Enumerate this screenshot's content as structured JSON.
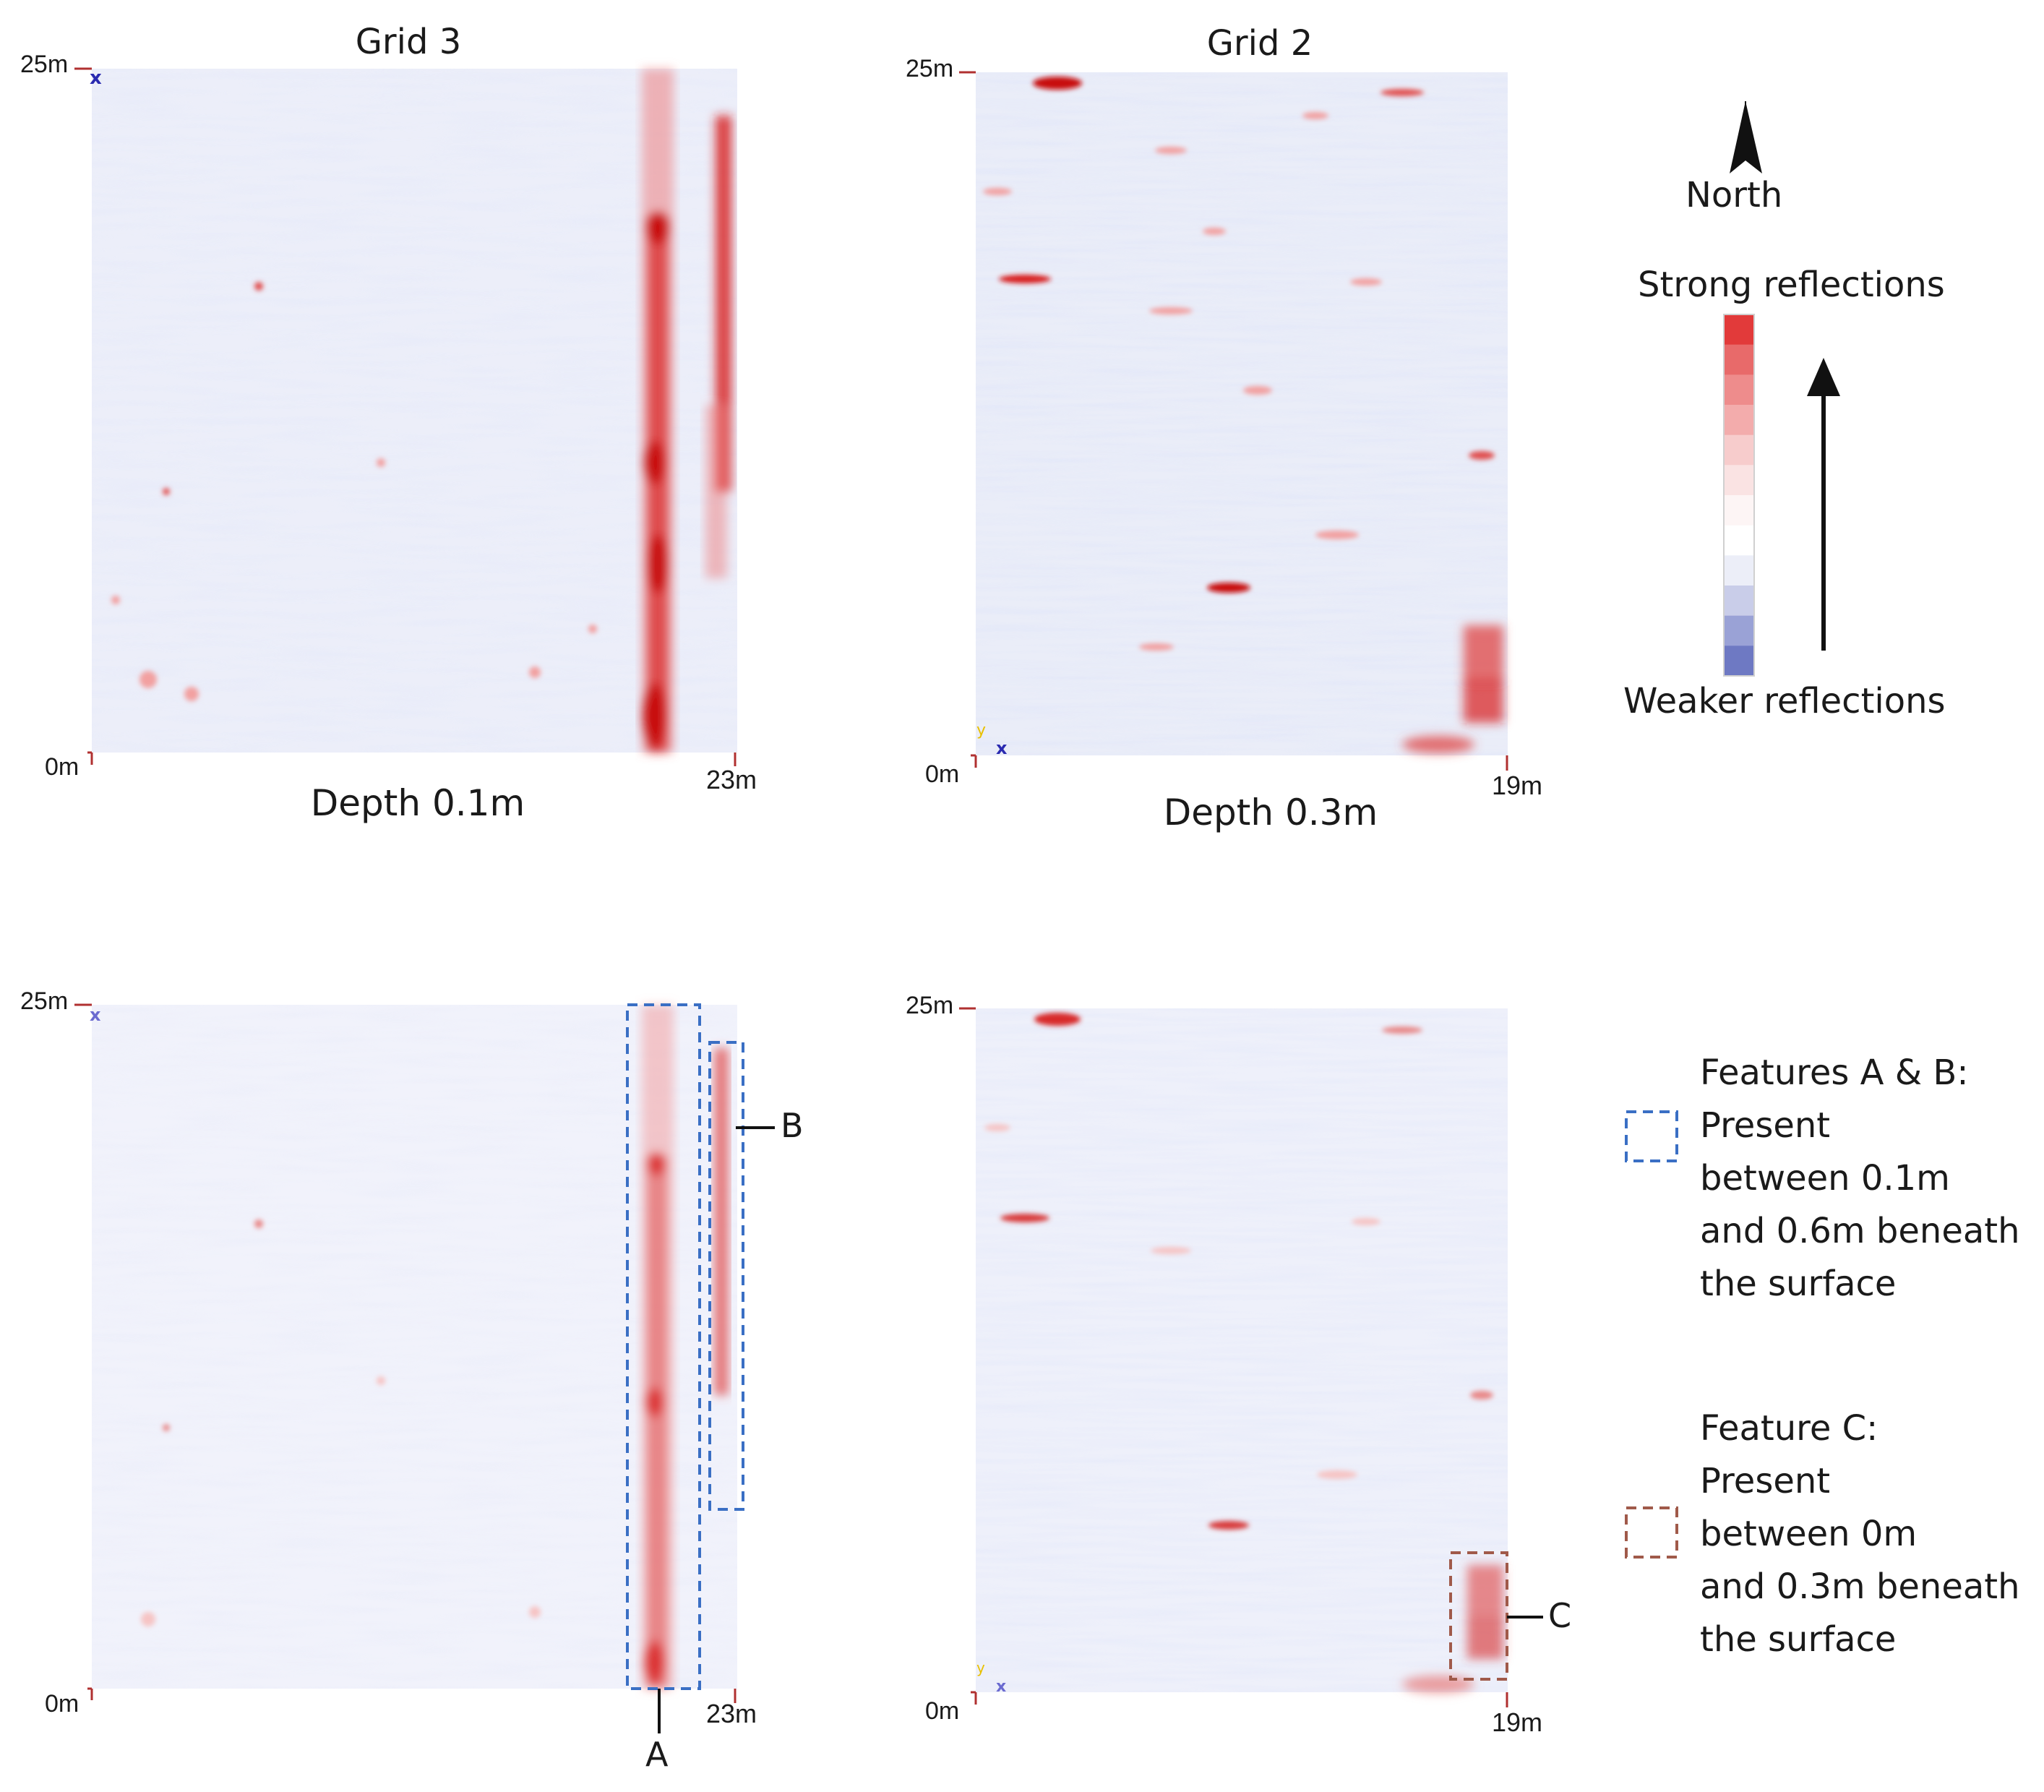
{
  "chart_data": [
    {
      "type": "heatmap",
      "title": "Grid 3",
      "subtitle": "Depth 0.1m",
      "x_axis": {
        "start_label": "0m",
        "end_label": "23m",
        "range": [
          0,
          23
        ]
      },
      "y_axis": {
        "start_label": "0m",
        "end_label": "25m",
        "range": [
          0,
          25
        ]
      },
      "strong_features_x_m": [
        19.5,
        22.0
      ]
    },
    {
      "type": "heatmap",
      "title": "Grid 2",
      "subtitle": "Depth 0.3m",
      "x_axis": {
        "start_label": "0m",
        "end_label": "19m",
        "range": [
          0,
          19
        ]
      },
      "y_axis": {
        "start_label": "0m",
        "end_label": "25m",
        "range": [
          0,
          25
        ]
      },
      "strong_features_x_m": [
        18.5
      ]
    },
    {
      "type": "heatmap",
      "title": "",
      "x_axis": {
        "start_label": "0m",
        "end_label": "23m",
        "range": [
          0,
          23
        ]
      },
      "y_axis": {
        "start_label": "0m",
        "end_label": "25m",
        "range": [
          0,
          25
        ]
      },
      "annotations": [
        {
          "label": "A",
          "style": "blue-dashed",
          "x_range_m": [
            19.0,
            21.5
          ],
          "y_range_m": [
            0,
            25
          ]
        },
        {
          "label": "B",
          "style": "blue-dashed",
          "x_range_m": [
            21.7,
            23.0
          ],
          "y_range_m": [
            6.5,
            23.5
          ]
        }
      ]
    },
    {
      "type": "heatmap",
      "title": "",
      "x_axis": {
        "start_label": "0m",
        "end_label": "19m",
        "range": [
          0,
          19
        ]
      },
      "y_axis": {
        "start_label": "0m",
        "end_label": "25m",
        "range": [
          0,
          25
        ]
      },
      "annotations": [
        {
          "label": "C",
          "style": "red-dashed",
          "x_range_m": [
            17.0,
            19.0
          ],
          "y_range_m": [
            0.6,
            5.2
          ]
        }
      ]
    }
  ],
  "legend": {
    "north_label": "North",
    "strong_label": "Strong reflections",
    "weak_label": "Weaker reflections",
    "scale_colors": [
      "#e23a3a",
      "#e86a6a",
      "#ee8c8c",
      "#f3acac",
      "#f7cccc",
      "#fae3e3",
      "#fdf5f5",
      "#ffffff",
      "#eceef8",
      "#c9cde9",
      "#9aa2d6",
      "#6e79c3"
    ],
    "feature_ab": {
      "lines": [
        "Features A & B:",
        "Present",
        "between 0.1m",
        "and 0.6m beneath",
        "the surface"
      ],
      "color": "#3a6fc4"
    },
    "feature_c": {
      "lines": [
        "Feature C:",
        "Present",
        "between 0m",
        "and 0.3m beneath",
        "the surface"
      ],
      "color": "#a05a4a"
    }
  },
  "colors": {
    "red": "#d81e1e",
    "blue_marker": "#2a2ab0",
    "blue_box": "#3a6fc4",
    "red_box": "#a05a4a",
    "field_base": "#eceef9"
  }
}
